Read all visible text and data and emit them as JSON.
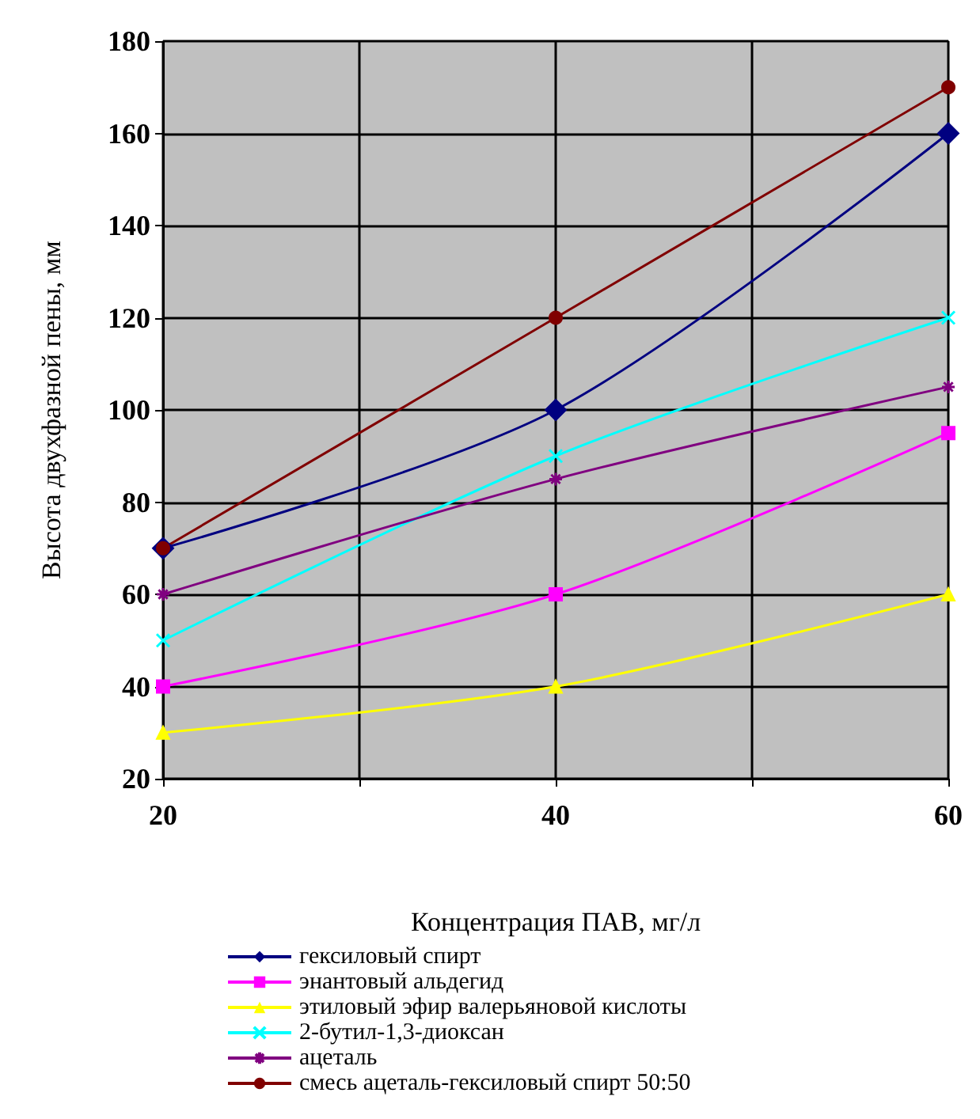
{
  "chart_data": {
    "type": "line",
    "xlabel": "Концентрация ПАВ, мг/л",
    "ylabel": "Высота двухфазной пены, мм",
    "x": [
      20,
      40,
      60
    ],
    "xlim": [
      20,
      60
    ],
    "xticks": [
      20,
      {
        "value": 30,
        "label": null
      },
      40,
      {
        "value": 50,
        "label": null
      },
      60
    ],
    "ylim": [
      20,
      180
    ],
    "yticks": [
      20,
      40,
      60,
      80,
      100,
      120,
      140,
      160,
      180
    ],
    "grid": true,
    "legend": "bottom",
    "series": [
      {
        "name": "гексиловый спирт",
        "color": "#000080",
        "marker": "diamond",
        "values": [
          70,
          100,
          160
        ]
      },
      {
        "name": "энантовый альдегид",
        "color": "#ff00ff",
        "marker": "square",
        "values": [
          40,
          60,
          95
        ]
      },
      {
        "name": "этиловый эфир валерьяновой кислоты",
        "color": "#ffff00",
        "marker": "triangle",
        "values": [
          30,
          40,
          60
        ]
      },
      {
        "name": "2-бутил-1,3-диоксан",
        "color": "#00ffff",
        "marker": "cross",
        "values": [
          50,
          90,
          120
        ]
      },
      {
        "name": "ацеталь",
        "color": "#800080",
        "marker": "star",
        "values": [
          60,
          85,
          105
        ]
      },
      {
        "name": "смесь ацеталь-гексиловый спирт 50:50",
        "color": "#800000",
        "marker": "circle",
        "values": [
          70,
          120,
          170
        ]
      }
    ]
  }
}
